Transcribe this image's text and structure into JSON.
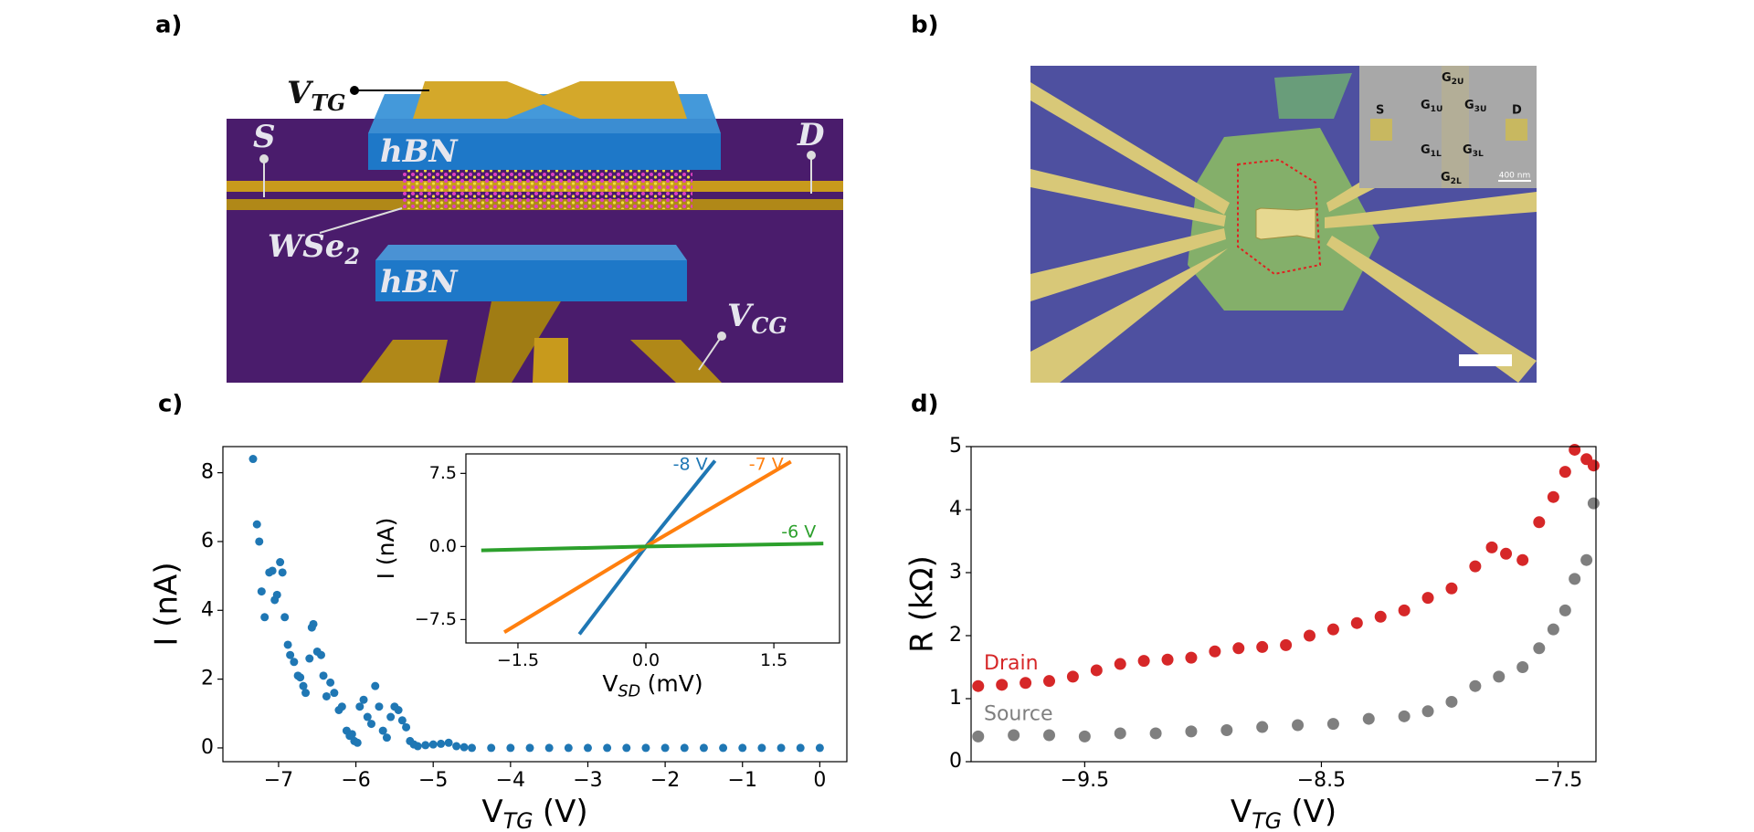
{
  "panel_labels": [
    "a)",
    "b)",
    "c)",
    "d)"
  ],
  "diagram_a": {
    "v_tg": {
      "main": "V",
      "sub": "TG"
    },
    "source": "S",
    "drain": "D",
    "hbn_top": "hBN",
    "wse2": {
      "main": "WSe",
      "sub": "2"
    },
    "hbn_bottom": "hBN",
    "v_cg": {
      "main": "V",
      "sub": "CG"
    }
  },
  "image_b": {
    "source": "S",
    "drain": "D",
    "gates": [
      {
        "main": "G",
        "sub": "2U"
      },
      {
        "main": "G",
        "sub": "1U"
      },
      {
        "main": "G",
        "sub": "3U"
      },
      {
        "main": "G",
        "sub": "1L"
      },
      {
        "main": "G",
        "sub": "3L"
      },
      {
        "main": "G",
        "sub": "2L"
      }
    ],
    "scale_bar": "400 nm"
  },
  "chart_data": [
    {
      "type": "scatter",
      "xlabel": {
        "text": "V",
        "sub": "TG",
        "unit": "(V)"
      },
      "ylabel": "I (nA)",
      "color": "#1f77b4",
      "x": [
        -7.33,
        -7.28,
        -7.25,
        -7.22,
        -7.18,
        -7.12,
        -7.08,
        -7.05,
        -7.02,
        -6.98,
        -6.95,
        -6.92,
        -6.88,
        -6.85,
        -6.8,
        -6.75,
        -6.72,
        -6.68,
        -6.65,
        -6.6,
        -6.57,
        -6.55,
        -6.5,
        -6.45,
        -6.42,
        -6.38,
        -6.33,
        -6.28,
        -6.22,
        -6.18,
        -6.12,
        -6.08,
        -6.05,
        -6.02,
        -5.98,
        -5.95,
        -5.9,
        -5.85,
        -5.8,
        -5.75,
        -5.7,
        -5.65,
        -5.6,
        -5.55,
        -5.5,
        -5.45,
        -5.4,
        -5.35,
        -5.3,
        -5.25,
        -5.2,
        -5.1,
        -5.0,
        -4.9,
        -4.8,
        -4.7,
        -4.6,
        -4.5,
        -4.25,
        -4.0,
        -3.75,
        -3.5,
        -3.25,
        -3.0,
        -2.75,
        -2.5,
        -2.25,
        -2.0,
        -1.75,
        -1.5,
        -1.25,
        -1.0,
        -0.75,
        -0.5,
        -0.25,
        0.0
      ],
      "values": [
        8.4,
        6.5,
        6.0,
        4.55,
        3.8,
        5.1,
        5.15,
        4.3,
        4.45,
        5.4,
        5.1,
        3.8,
        3.0,
        2.7,
        2.5,
        2.1,
        2.05,
        1.8,
        1.6,
        2.6,
        3.5,
        3.6,
        2.8,
        2.7,
        2.1,
        1.5,
        1.9,
        1.6,
        1.1,
        1.2,
        0.5,
        0.35,
        0.4,
        0.2,
        0.15,
        1.2,
        1.4,
        0.9,
        0.7,
        1.8,
        1.2,
        0.5,
        0.3,
        0.9,
        1.2,
        1.1,
        0.8,
        0.6,
        0.2,
        0.1,
        0.05,
        0.08,
        0.1,
        0.12,
        0.15,
        0.05,
        0.02,
        0.0,
        0.0,
        0.0,
        0.0,
        0.0,
        0.0,
        0.0,
        0.0,
        0.0,
        0.0,
        0.0,
        0.0,
        0.0,
        0.0,
        0.0,
        0.0,
        0.0,
        0.0,
        0.0
      ],
      "xlim": [
        -7.72,
        0.35
      ],
      "ylim": [
        -0.4,
        8.76
      ],
      "xticks": [
        {
          "value": -7,
          "label": "−7"
        },
        {
          "value": -6,
          "label": "−6"
        },
        {
          "value": -5,
          "label": "−5"
        },
        {
          "value": -4,
          "label": "−4"
        },
        {
          "value": -3,
          "label": "−3"
        },
        {
          "value": -2,
          "label": "−2"
        },
        {
          "value": -1,
          "label": "−1"
        },
        0
      ],
      "yticks": [
        0,
        2,
        4,
        6,
        8
      ]
    },
    {
      "type": "line",
      "xlabel": {
        "text": "V",
        "sub": "SD",
        "unit": "(mV)"
      },
      "ylabel": "I (nA)",
      "series": [
        {
          "name": "-8 V",
          "color": "#1f77b4",
          "x": [
            -0.78,
            0,
            0.81
          ],
          "values": [
            -9.0,
            0,
            8.8
          ]
        },
        {
          "name": "-7 V",
          "color": "#ff7f0e",
          "x": [
            -1.66,
            0,
            1.7
          ],
          "values": [
            -8.8,
            0,
            8.7
          ]
        },
        {
          "name": "-6 V",
          "color": "#2ca02c",
          "x": [
            -1.93,
            0,
            2.08
          ],
          "values": [
            -0.4,
            0,
            0.3
          ]
        }
      ],
      "xlim": [
        -2.11,
        2.27
      ],
      "ylim": [
        -9.9,
        9.5
      ],
      "xticks": [
        {
          "value": -1.5,
          "label": "−1.5"
        },
        {
          "value": 0,
          "label": "0.0"
        },
        1.5
      ],
      "yticks": [
        {
          "value": -7.5,
          "label": "−7.5"
        },
        {
          "value": 0,
          "label": "0.0"
        },
        7.5
      ]
    },
    {
      "type": "scatter",
      "xlabel": {
        "text": "V",
        "sub": "TG",
        "unit": "(V)"
      },
      "ylabel": "R (kΩ)",
      "series": [
        {
          "name": "Drain",
          "color": "#d62728",
          "x": [
            -9.95,
            -9.85,
            -9.75,
            -9.65,
            -9.55,
            -9.45,
            -9.35,
            -9.25,
            -9.15,
            -9.05,
            -8.95,
            -8.85,
            -8.75,
            -8.65,
            -8.55,
            -8.45,
            -8.35,
            -8.25,
            -8.15,
            -8.05,
            -7.95,
            -7.85,
            -7.78,
            -7.72,
            -7.65,
            -7.58,
            -7.52,
            -7.47,
            -7.43,
            -7.38,
            -7.35
          ],
          "values": [
            1.2,
            1.22,
            1.25,
            1.28,
            1.35,
            1.45,
            1.55,
            1.6,
            1.62,
            1.65,
            1.75,
            1.8,
            1.82,
            1.85,
            2.0,
            2.1,
            2.2,
            2.3,
            2.4,
            2.6,
            2.75,
            3.1,
            3.4,
            3.3,
            3.2,
            3.8,
            4.2,
            4.6,
            4.95,
            4.8,
            4.7
          ]
        },
        {
          "name": "Source",
          "color": "#7f7f7f",
          "x": [
            -9.95,
            -9.8,
            -9.65,
            -9.5,
            -9.35,
            -9.2,
            -9.05,
            -8.9,
            -8.75,
            -8.6,
            -8.45,
            -8.3,
            -8.15,
            -8.05,
            -7.95,
            -7.85,
            -7.75,
            -7.65,
            -7.58,
            -7.52,
            -7.47,
            -7.43,
            -7.38,
            -7.35
          ],
          "values": [
            0.4,
            0.42,
            0.42,
            0.4,
            0.45,
            0.45,
            0.48,
            0.5,
            0.55,
            0.58,
            0.6,
            0.68,
            0.72,
            0.8,
            0.95,
            1.2,
            1.35,
            1.5,
            1.8,
            2.1,
            2.4,
            2.9,
            3.2,
            4.1
          ]
        }
      ],
      "xlim": [
        -9.98,
        -7.34
      ],
      "ylim": [
        0,
        5
      ],
      "xticks": [
        {
          "value": -9.5,
          "label": "−9.5"
        },
        {
          "value": -8.5,
          "label": "−8.5"
        },
        {
          "value": -7.5,
          "label": "−7.5"
        }
      ],
      "yticks": [
        0,
        1,
        2,
        3,
        4,
        5
      ]
    }
  ]
}
